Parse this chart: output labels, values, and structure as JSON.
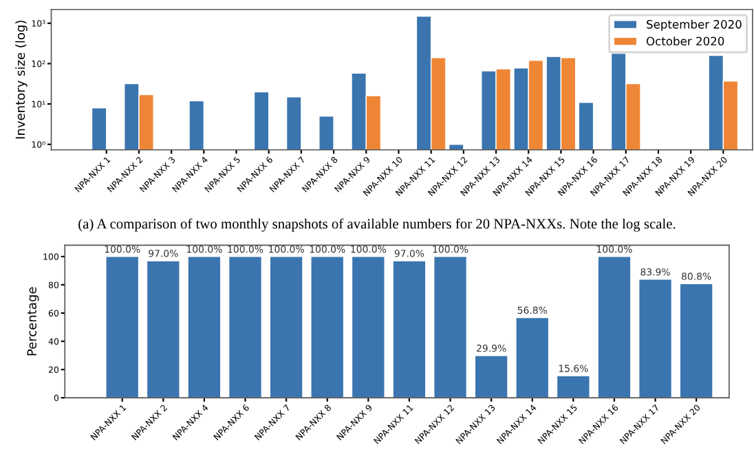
{
  "chart_data": [
    {
      "type": "bar",
      "ylabel": "Inventory size (log)",
      "log": "y",
      "categories": [
        "NPA-NXX 1",
        "NPA-NXX 2",
        "NPA-NXX 3",
        "NPA-NXX 4",
        "NPA-NXX 5",
        "NPA-NXX 6",
        "NPA-NXX 7",
        "NPA-NXX 8",
        "NPA-NXX 9",
        "NPA-NXX 10",
        "NPA-NXX 11",
        "NPA-NXX 12",
        "NPA-NXX 13",
        "NPA-NXX 14",
        "NPA-NXX 15",
        "NPA-NXX 16",
        "NPA-NXX 17",
        "NPA-NXX 18",
        "NPA-NXX 19",
        "NPA-NXX 20"
      ],
      "series": [
        {
          "name": "September 2020",
          "color": "#3a75af",
          "values": [
            8,
            32,
            null,
            12,
            null,
            20,
            15,
            5,
            58,
            null,
            1500,
            1,
            66,
            78,
            150,
            11,
            180,
            null,
            null,
            160
          ]
        },
        {
          "name": "October 2020",
          "color": "#ef8636",
          "values": [
            null,
            17,
            null,
            null,
            null,
            null,
            null,
            null,
            16,
            null,
            140,
            null,
            74,
            120,
            140,
            null,
            32,
            null,
            null,
            37
          ]
        }
      ],
      "ylim": [
        0.73,
        2200
      ],
      "yticks": [
        {
          "value": 1,
          "label": "10⁰"
        },
        {
          "value": 10,
          "label": "10¹"
        },
        {
          "value": 100,
          "label": "10²"
        },
        {
          "value": 1000,
          "label": "10³"
        }
      ],
      "legend": "top right",
      "grid": false,
      "annotations": [
        "(a) A comparison of two monthly snapshots of available numbers for 20 NPA-NXXs. Note the log scale."
      ]
    },
    {
      "type": "bar",
      "ylabel": "Percentage",
      "categories": [
        "NPA-NXX 1",
        "NPA-NXX 2",
        "NPA-NXX 4",
        "NPA-NXX 6",
        "NPA-NXX 7",
        "NPA-NXX 8",
        "NPA-NXX 9",
        "NPA-NXX 11",
        "NPA-NXX 12",
        "NPA-NXX 13",
        "NPA-NXX 14",
        "NPA-NXX 15",
        "NPA-NXX 16",
        "NPA-NXX 17",
        "NPA-NXX 20"
      ],
      "values": [
        100.0,
        97.0,
        100.0,
        100.0,
        100.0,
        100.0,
        100.0,
        97.0,
        100.0,
        29.9,
        56.8,
        15.6,
        100.0,
        83.9,
        80.8
      ],
      "value_labels": [
        "100.0%",
        "97.0%",
        "100.0%",
        "100.0%",
        "100.0%",
        "100.0%",
        "100.0%",
        "97.0%",
        "100.0%",
        "29.9%",
        "56.8%",
        "15.6%",
        "100.0%",
        "83.9%",
        "80.8%"
      ],
      "color": "#3a75af",
      "ylim": [
        0,
        108
      ],
      "yticks": [
        0,
        20,
        40,
        60,
        80,
        100
      ],
      "grid": false
    }
  ]
}
